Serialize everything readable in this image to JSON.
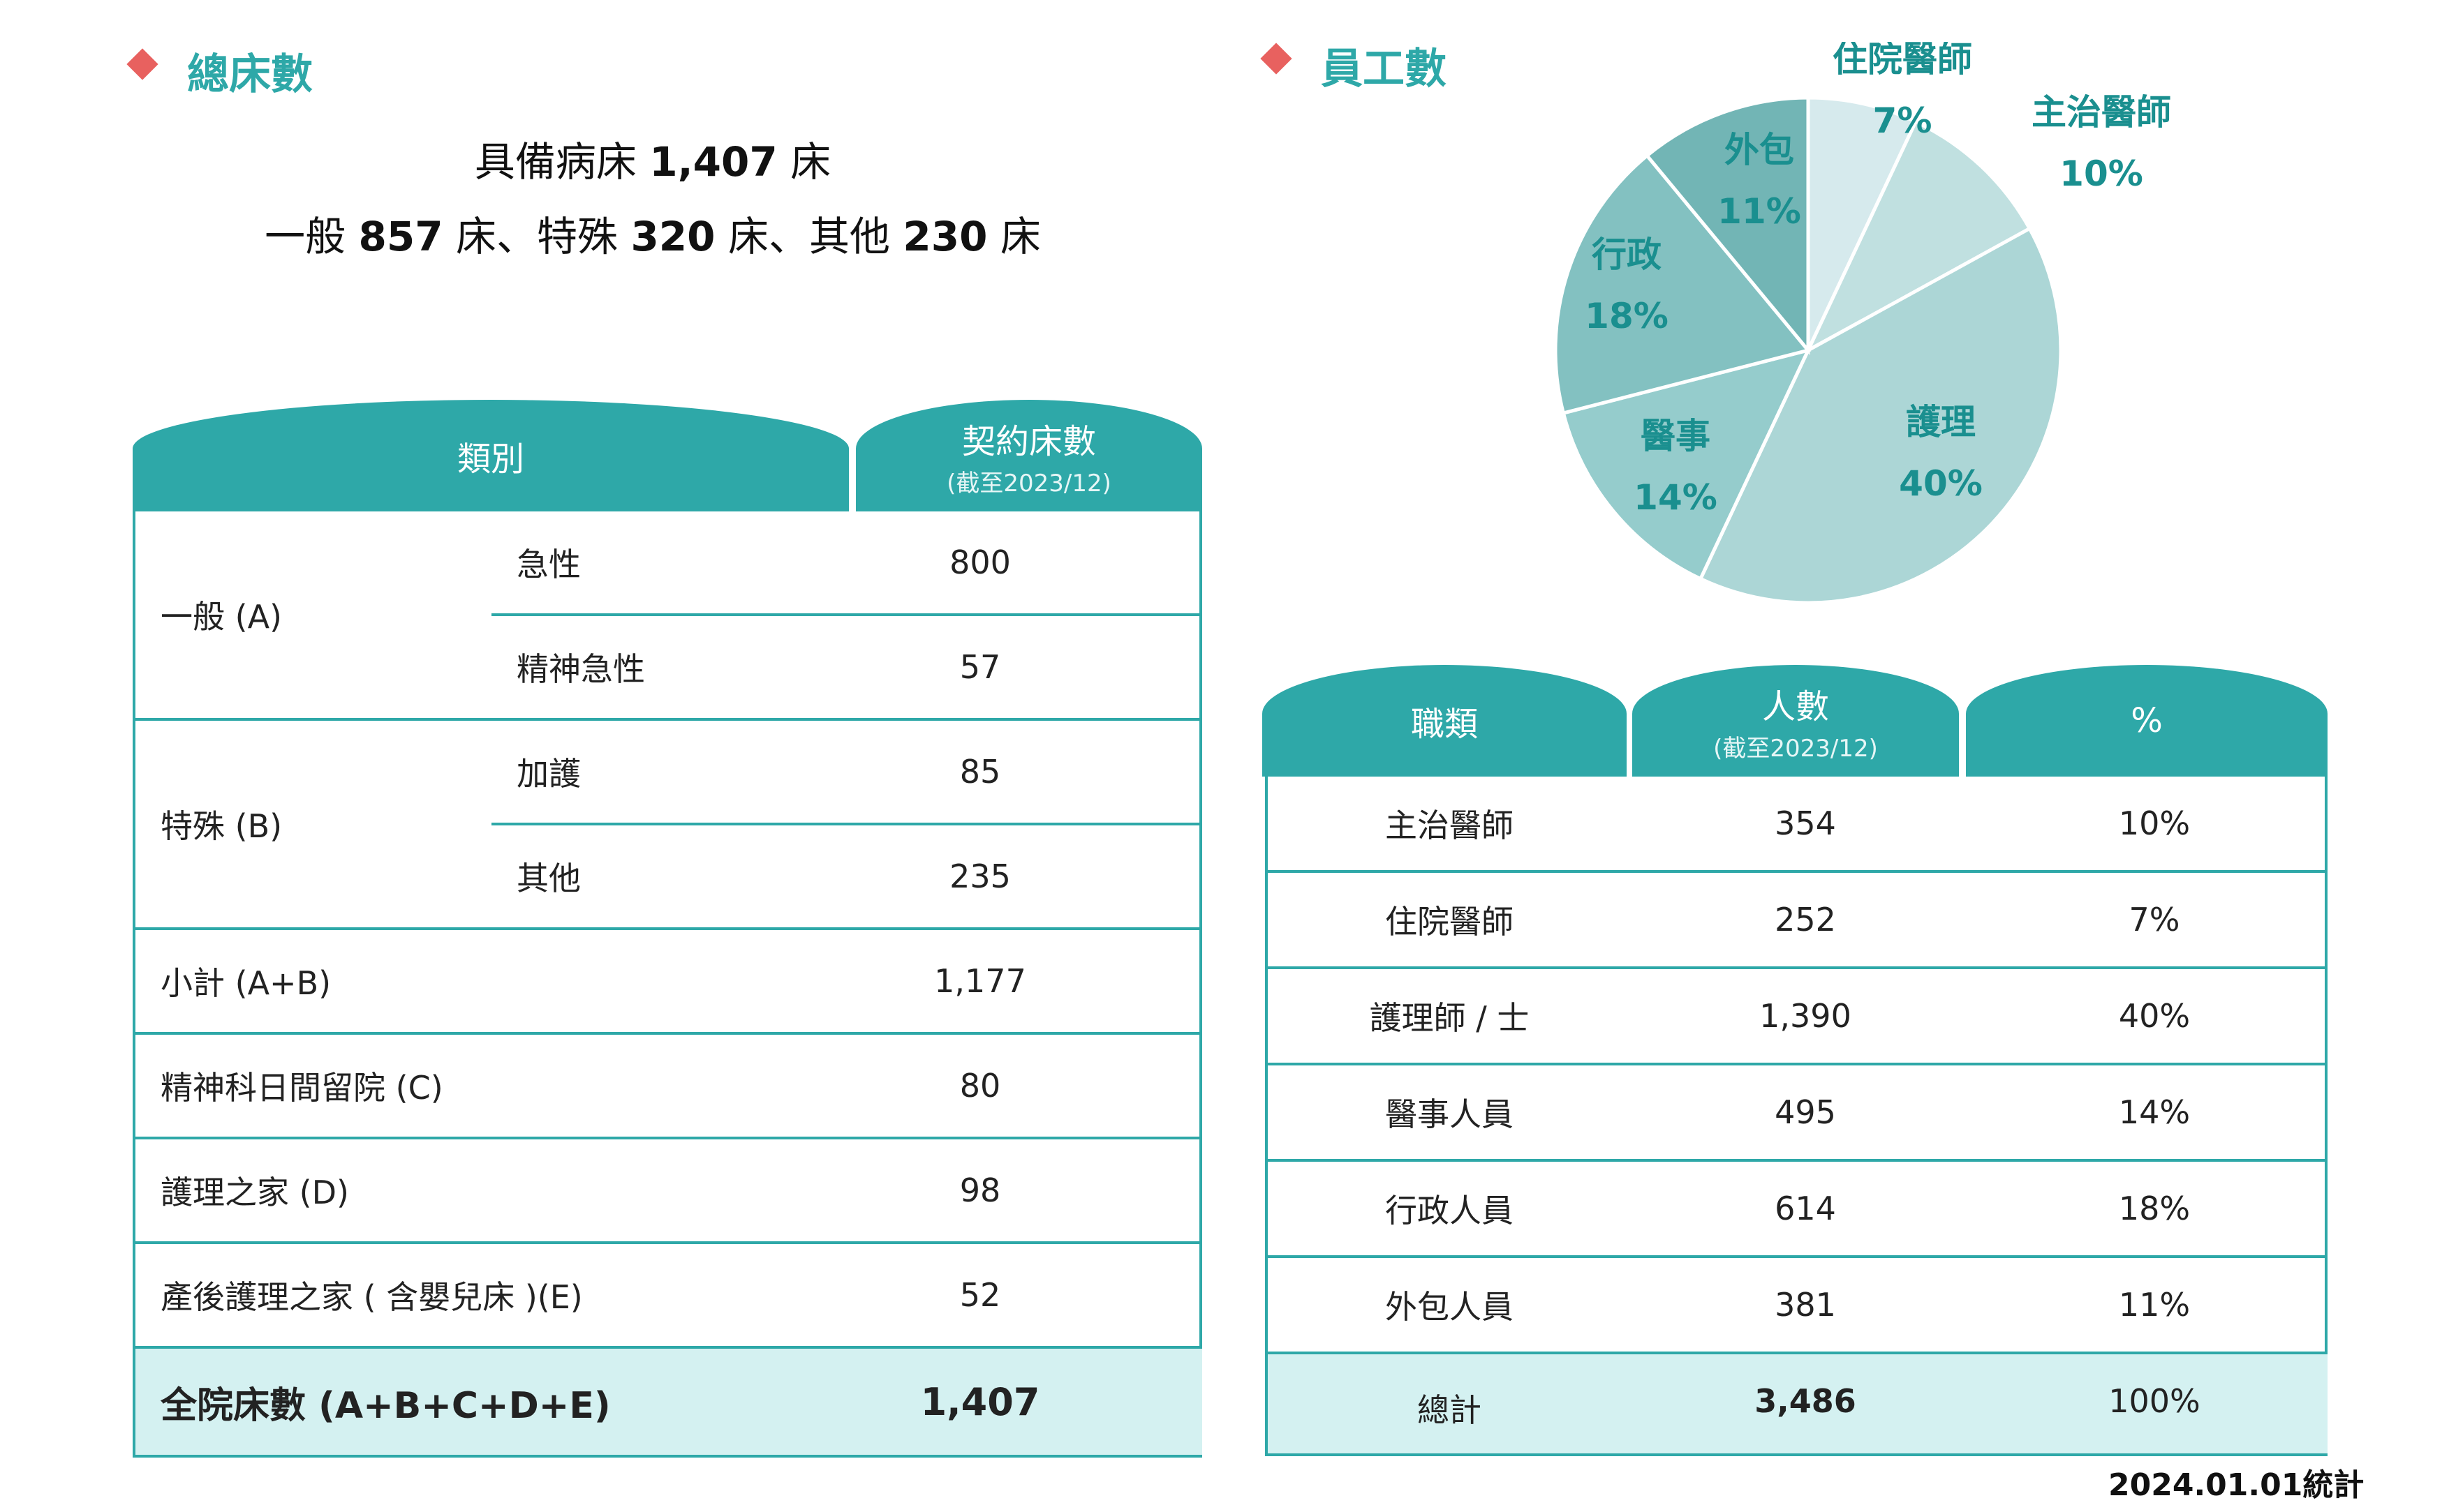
{
  "beds": {
    "title": "總床數",
    "summary_line1": {
      "pre": "具備病床 ",
      "num": "1,407",
      "post": " 床"
    },
    "summary_line2": [
      {
        "pre": "一般 ",
        "num": "857",
        "post": " 床、"
      },
      {
        "pre": "特殊 ",
        "num": "320",
        "post": " 床、"
      },
      {
        "pre": "其他 ",
        "num": "230",
        "post": " 床"
      }
    ],
    "header": {
      "category": "類別",
      "contract": "契約床數",
      "as_of": "(截至2023/12)"
    },
    "groups": {
      "general": {
        "label": "一般 (A)",
        "rows": [
          {
            "name": "急性",
            "value": "800"
          },
          {
            "name": "精神急性",
            "value": "57"
          }
        ]
      },
      "special": {
        "label": "特殊 (B)",
        "rows": [
          {
            "name": "加護",
            "value": "85"
          },
          {
            "name": "其他",
            "value": "235"
          }
        ]
      }
    },
    "rows": [
      {
        "label": "小計 (A+B)",
        "value": "1,177"
      },
      {
        "label": "精神科日間留院 (C)",
        "value": "80"
      },
      {
        "label": "護理之家 (D)",
        "value": "98"
      },
      {
        "label": "產後護理之家 ( 含嬰兒床 )(E)",
        "value": "52"
      }
    ],
    "total": {
      "label": "全院床數 (A+B+C+D+E)",
      "value": "1,407"
    }
  },
  "staff": {
    "title": "員工數",
    "header": {
      "job": "職類",
      "count": "人數",
      "as_of": "(截至2023/12)",
      "percent": "%"
    },
    "rows": [
      {
        "job": "主治醫師",
        "count": "354",
        "percent": "10%"
      },
      {
        "job": "住院醫師",
        "count": "252",
        "percent": "7%"
      },
      {
        "job": "護理師 / 士",
        "count": "1,390",
        "percent": "40%"
      },
      {
        "job": "醫事人員",
        "count": "495",
        "percent": "14%"
      },
      {
        "job": "行政人員",
        "count": "614",
        "percent": "18%"
      },
      {
        "job": "外包人員",
        "count": "381",
        "percent": "11%"
      }
    ],
    "total": {
      "job": "總計",
      "count": "3,486",
      "percent": "100%"
    },
    "footnote": "2024.01.01統計"
  },
  "chart_data": {
    "type": "pie",
    "slices": [
      {
        "label": "住院醫師",
        "value": 7,
        "display": "7%",
        "color": "#d6eaed"
      },
      {
        "label": "主治醫師",
        "value": 10,
        "display": "10%",
        "color": "#c0e0e0"
      },
      {
        "label": "護理",
        "value": 40,
        "display": "40%",
        "color": "#acd6d6"
      },
      {
        "label": "醫事",
        "value": 14,
        "display": "14%",
        "color": "#95cccc"
      },
      {
        "label": "行政",
        "value": 18,
        "display": "18%",
        "color": "#83c1c1"
      },
      {
        "label": "外包",
        "value": 11,
        "display": "11%",
        "color": "#72b5b5"
      }
    ]
  },
  "colors": {
    "accent": "#2ea8a8",
    "marker": "#e8615f",
    "total_bg": "#d4f1f1",
    "label": "#1a8f8f"
  }
}
